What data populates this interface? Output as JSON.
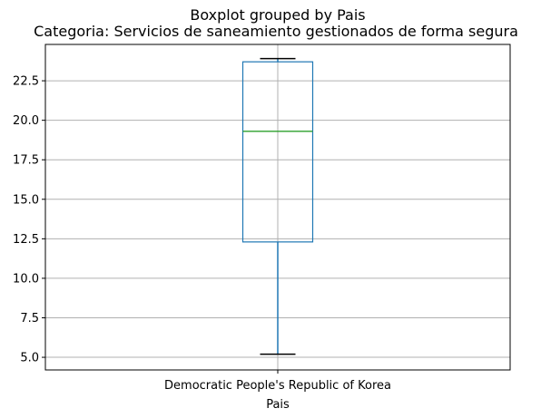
{
  "chart_data": {
    "type": "box",
    "suptitle": "Boxplot grouped by Pais",
    "title": "Categoria: Servicios de saneamiento gestionados de forma segura",
    "xlabel": "Pais",
    "ylabel": "",
    "categories": [
      "Democratic People's Republic of Korea"
    ],
    "boxes": [
      {
        "category": "Democratic People's Republic of Korea",
        "whisker_low": 5.2,
        "q1": 12.3,
        "median": 19.3,
        "q3": 23.7,
        "whisker_high": 23.9
      }
    ],
    "ylim": [
      4.2,
      24.8
    ],
    "yticks": [
      5.0,
      7.5,
      10.0,
      12.5,
      15.0,
      17.5,
      20.0,
      22.5
    ],
    "ytick_labels": [
      "5.0",
      "7.5",
      "10.0",
      "12.5",
      "15.0",
      "17.5",
      "20.0",
      "22.5"
    ],
    "grid": true,
    "colors": {
      "box": "#1f77b4",
      "median": "#2ca02c",
      "whisker_cap": "#000000",
      "grid": "#b0b0b0",
      "axes": "#000000"
    }
  }
}
